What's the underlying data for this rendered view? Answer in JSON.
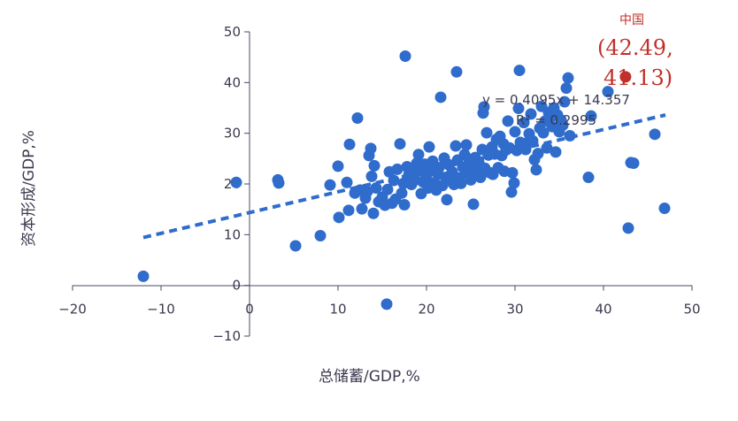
{
  "chart_data": {
    "type": "scatter",
    "xlabel": "总储蓄/GDP,%",
    "ylabel": "资本形成/GDP,%",
    "xlim": [
      -20,
      50
    ],
    "ylim": [
      -10,
      50
    ],
    "x_ticks": [
      "−20",
      "−10",
      "0",
      "10",
      "20",
      "30",
      "40",
      "50"
    ],
    "y_ticks": [
      "50",
      "40",
      "30",
      "20",
      "10",
      "0",
      "−10"
    ],
    "grid": false,
    "colors": {
      "points": "#2f6ccc",
      "trendline": "#2f6ccc",
      "highlight": "#c0302a",
      "axis": "#4a4866",
      "text": "#3b3a4f"
    },
    "trendline": {
      "slope": 0.4095,
      "intercept": 14.357,
      "x_range": [
        -12,
        47
      ],
      "equation": "y = 0.4095x + 14.357",
      "r_squared": "R² = 0.2995"
    },
    "highlight": {
      "name": "中国",
      "label_line1": "(42.49,",
      "label_line2": "41.13)",
      "x": 42.49,
      "y": 41.13
    },
    "points": [
      [
        -12,
        1.8
      ],
      [
        -1.5,
        20.3
      ],
      [
        3.2,
        20.8
      ],
      [
        3.3,
        20.2
      ],
      [
        5.2,
        7.8
      ],
      [
        8,
        9.8
      ],
      [
        9.1,
        19.8
      ],
      [
        10,
        23.5
      ],
      [
        10.1,
        13.4
      ],
      [
        11,
        20.3
      ],
      [
        11.2,
        14.8
      ],
      [
        11.3,
        27.8
      ],
      [
        11.9,
        18.2
      ],
      [
        12.2,
        33
      ],
      [
        12.5,
        18.8
      ],
      [
        12.7,
        15.1
      ],
      [
        13.1,
        17.2
      ],
      [
        13.3,
        18.5
      ],
      [
        13.5,
        25.6
      ],
      [
        13.7,
        27
      ],
      [
        13.8,
        21.5
      ],
      [
        14,
        14.2
      ],
      [
        14.1,
        23.6
      ],
      [
        14.3,
        19.2
      ],
      [
        14.6,
        16.5
      ],
      [
        15,
        17.4
      ],
      [
        15.3,
        15.8
      ],
      [
        15.6,
        18.9
      ],
      [
        15.8,
        22.4
      ],
      [
        15.5,
        -3.7
      ],
      [
        16.1,
        16.2
      ],
      [
        16.3,
        20.7
      ],
      [
        16.5,
        17
      ],
      [
        16.7,
        22.9
      ],
      [
        17,
        27.9
      ],
      [
        17.2,
        18.2
      ],
      [
        17.4,
        20.1
      ],
      [
        17.5,
        15.9
      ],
      [
        17.8,
        23.4
      ],
      [
        17.6,
        45.2
      ],
      [
        18,
        21.8
      ],
      [
        18.3,
        19.9
      ],
      [
        18.5,
        22.2
      ],
      [
        18.7,
        20.8
      ],
      [
        18.9,
        24.1
      ],
      [
        19.1,
        25.8
      ],
      [
        19.3,
        22.6
      ],
      [
        19.4,
        18.1
      ],
      [
        19.6,
        20.4
      ],
      [
        19.8,
        23.9
      ],
      [
        20,
        21.4
      ],
      [
        20.2,
        19.2
      ],
      [
        20.3,
        27.3
      ],
      [
        20.5,
        22.7
      ],
      [
        20.7,
        24.5
      ],
      [
        20.9,
        20.2
      ],
      [
        21.1,
        18.8
      ],
      [
        21.3,
        21.9
      ],
      [
        21.4,
        23.2
      ],
      [
        21.6,
        37.1
      ],
      [
        21.8,
        19.7
      ],
      [
        22,
        25.1
      ],
      [
        22.2,
        21.3
      ],
      [
        22.3,
        16.9
      ],
      [
        22.5,
        23.8
      ],
      [
        22.7,
        20.6
      ],
      [
        22.9,
        22.4
      ],
      [
        23.1,
        19.9
      ],
      [
        23.3,
        27.5
      ],
      [
        23.4,
        42.1
      ],
      [
        23.5,
        24.7
      ],
      [
        23.7,
        21.2
      ],
      [
        23.9,
        20.1
      ],
      [
        24.1,
        23.3
      ],
      [
        24.3,
        25.8
      ],
      [
        24.5,
        27.7
      ],
      [
        24.6,
        22.1
      ],
      [
        24.8,
        24.9
      ],
      [
        25,
        20.8
      ],
      [
        25.2,
        23.9
      ],
      [
        25.3,
        16
      ],
      [
        25.5,
        25.2
      ],
      [
        25.7,
        22.6
      ],
      [
        25.9,
        24.3
      ],
      [
        26.1,
        21.3
      ],
      [
        26.3,
        26.8
      ],
      [
        26.4,
        34
      ],
      [
        26.5,
        35.2
      ],
      [
        26.6,
        23.1
      ],
      [
        26.8,
        30.1
      ],
      [
        27,
        25.7
      ],
      [
        27.2,
        22.2
      ],
      [
        27.4,
        27.3
      ],
      [
        27.5,
        21.9
      ],
      [
        27.7,
        25.9
      ],
      [
        27.9,
        28.8
      ],
      [
        28.1,
        23.2
      ],
      [
        28.3,
        29.4
      ],
      [
        28.5,
        25.6
      ],
      [
        28.7,
        27.9
      ],
      [
        28.8,
        22.5
      ],
      [
        29,
        26.7
      ],
      [
        29.2,
        32.4
      ],
      [
        29.4,
        27.1
      ],
      [
        29.6,
        18.4
      ],
      [
        29.7,
        22.2
      ],
      [
        29.9,
        20.2
      ],
      [
        30,
        30.3
      ],
      [
        30.2,
        26.6
      ],
      [
        30.4,
        34.9
      ],
      [
        30.5,
        42.4
      ],
      [
        30.6,
        28.2
      ],
      [
        30.8,
        27.5
      ],
      [
        31,
        32.1
      ],
      [
        31.2,
        26.8
      ],
      [
        31.4,
        28.1
      ],
      [
        31.6,
        29.9
      ],
      [
        31.8,
        33.8
      ],
      [
        32,
        28.5
      ],
      [
        32.2,
        24.8
      ],
      [
        32.4,
        22.8
      ],
      [
        32.6,
        26
      ],
      [
        32.8,
        31
      ],
      [
        33,
        35.3
      ],
      [
        33.2,
        30.1
      ],
      [
        33.4,
        32.4
      ],
      [
        33.6,
        27.1
      ],
      [
        33.8,
        34.1
      ],
      [
        34,
        33.1
      ],
      [
        34.2,
        31.3
      ],
      [
        34.4,
        35
      ],
      [
        34.6,
        26.3
      ],
      [
        34.8,
        33.6
      ],
      [
        35,
        30.3
      ],
      [
        35.2,
        32.6
      ],
      [
        35.4,
        31.6
      ],
      [
        35.6,
        36.2
      ],
      [
        35.8,
        38.9
      ],
      [
        36,
        40.9
      ],
      [
        36.2,
        29.5
      ],
      [
        38.3,
        21.3
      ],
      [
        38.6,
        33.4
      ],
      [
        40.5,
        38.2
      ],
      [
        42.8,
        11.3
      ],
      [
        43.1,
        24.2
      ],
      [
        43.4,
        24.1
      ],
      [
        45.8,
        29.8
      ],
      [
        46.9,
        15.2
      ]
    ]
  }
}
